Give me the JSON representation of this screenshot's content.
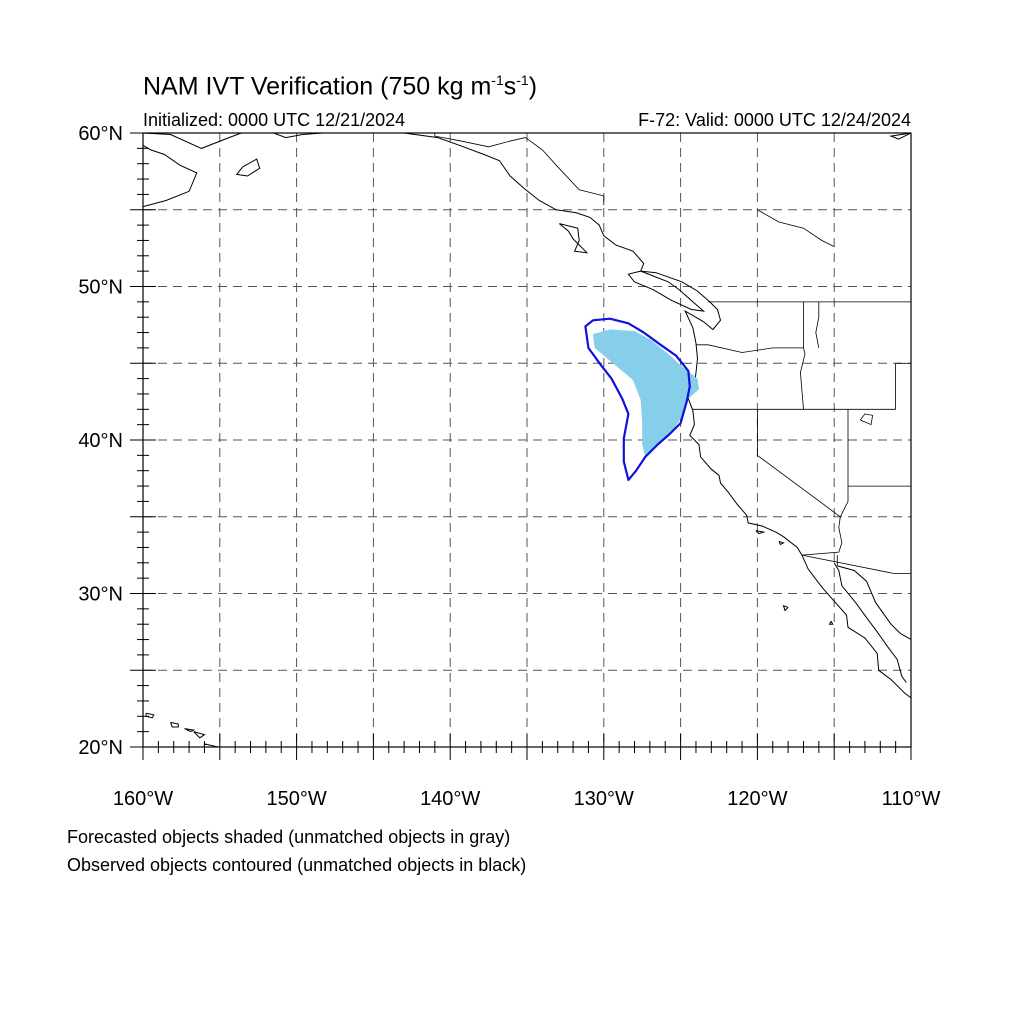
{
  "title": {
    "text": "NAM IVT Verification (750 kg m",
    "sup1": "-1",
    "mid": "s",
    "sup2": "-1",
    "end": ")"
  },
  "initialized": "Initialized: 0000 UTC 12/21/2024",
  "valid": "F-72: Valid: 0000 UTC 12/24/2024",
  "footnotes": {
    "forecast": "Forecasted objects shaded (unmatched objects in gray)",
    "observed": "Observed objects contoured (unmatched objects in black)"
  },
  "map": {
    "extent": {
      "lon_min": -160,
      "lon_max": -110,
      "lat_min": 20,
      "lat_max": 60
    },
    "lat_labels": [
      {
        "value": 20,
        "text": "20°N"
      },
      {
        "value": 30,
        "text": "30°N"
      },
      {
        "value": 40,
        "text": "40°N"
      },
      {
        "value": 50,
        "text": "50°N"
      },
      {
        "value": 60,
        "text": "60°N"
      }
    ],
    "lon_labels": [
      {
        "value": -160,
        "text": "160°W"
      },
      {
        "value": -150,
        "text": "150°W"
      },
      {
        "value": -140,
        "text": "140°W"
      },
      {
        "value": -130,
        "text": "130°W"
      },
      {
        "value": -120,
        "text": "120°W"
      },
      {
        "value": -110,
        "text": "110°W"
      }
    ],
    "grid_lons": [
      -155,
      -150,
      -145,
      -140,
      -135,
      -130,
      -125,
      -120,
      -115
    ],
    "grid_lats": [
      25,
      30,
      35,
      40,
      45,
      50,
      55
    ],
    "colors": {
      "forecast_fill": "#87ceeb",
      "observed_line": "#1010e0",
      "coast": "#000000",
      "grid": "#555555"
    },
    "forecast_object": [
      [
        -130.7,
        46.9
      ],
      [
        -129.6,
        47.2
      ],
      [
        -128.0,
        47.1
      ],
      [
        -126.9,
        46.5
      ],
      [
        -125.8,
        45.6
      ],
      [
        -124.8,
        44.7
      ],
      [
        -123.9,
        44.0
      ],
      [
        -123.8,
        43.3
      ],
      [
        -124.6,
        42.6
      ],
      [
        -125.0,
        41.4
      ],
      [
        -125.7,
        40.3
      ],
      [
        -126.6,
        39.5
      ],
      [
        -127.3,
        38.9
      ],
      [
        -127.5,
        39.7
      ],
      [
        -127.5,
        41.0
      ],
      [
        -127.6,
        42.6
      ],
      [
        -128.1,
        43.9
      ],
      [
        -129.4,
        45.0
      ],
      [
        -130.6,
        46.0
      ]
    ],
    "observed_object": [
      [
        -131.2,
        47.4
      ],
      [
        -130.7,
        47.8
      ],
      [
        -129.6,
        47.9
      ],
      [
        -128.4,
        47.6
      ],
      [
        -127.4,
        47.0
      ],
      [
        -126.3,
        46.2
      ],
      [
        -125.3,
        45.5
      ],
      [
        -124.5,
        44.5
      ],
      [
        -124.4,
        43.5
      ],
      [
        -124.6,
        42.5
      ],
      [
        -125.0,
        41.1
      ],
      [
        -125.7,
        40.4
      ],
      [
        -126.5,
        39.7
      ],
      [
        -127.3,
        38.9
      ],
      [
        -127.9,
        38.0
      ],
      [
        -128.4,
        37.4
      ],
      [
        -128.7,
        38.6
      ],
      [
        -128.7,
        40.1
      ],
      [
        -128.4,
        41.7
      ],
      [
        -128.8,
        42.7
      ],
      [
        -129.5,
        44.0
      ],
      [
        -130.2,
        44.9
      ],
      [
        -131.0,
        46.0
      ]
    ],
    "coastlines": [
      [
        [
          -160,
          55.2
        ],
        [
          -158.5,
          55.6
        ],
        [
          -157.0,
          56.2
        ],
        [
          -156.5,
          57.4
        ],
        [
          -157.6,
          57.9
        ],
        [
          -158.6,
          58.6
        ],
        [
          -159.5,
          58.9
        ],
        [
          -160,
          59.2
        ]
      ],
      [
        [
          -160,
          60
        ],
        [
          -158.2,
          59.9
        ],
        [
          -156.2,
          59.0
        ],
        [
          -154.4,
          59.7
        ],
        [
          -153.6,
          60
        ]
      ],
      [
        [
          -153.5,
          57.8
        ],
        [
          -152.6,
          58.3
        ],
        [
          -152.4,
          57.7
        ],
        [
          -153.2,
          57.2
        ],
        [
          -153.9,
          57.3
        ],
        [
          -153.5,
          57.8
        ]
      ],
      [
        [
          -151.5,
          60
        ],
        [
          -150.7,
          59.7
        ],
        [
          -149.6,
          59.9
        ],
        [
          -148.3,
          60.0
        ],
        [
          -147.0,
          60
        ],
        [
          -143,
          60
        ],
        [
          -140.8,
          59.7
        ],
        [
          -139.4,
          59.2
        ],
        [
          -137.8,
          58.6
        ],
        [
          -136.8,
          58.2
        ],
        [
          -136.1,
          57.2
        ],
        [
          -135.2,
          56.4
        ],
        [
          -134.2,
          55.6
        ],
        [
          -133.1,
          55.0
        ],
        [
          -131.8,
          54.8
        ],
        [
          -130.9,
          54.5
        ],
        [
          -130.3,
          54.0
        ],
        [
          -130.0,
          53.3
        ],
        [
          -129.2,
          52.7
        ],
        [
          -128.1,
          52.3
        ],
        [
          -127.4,
          51.5
        ],
        [
          -127.6,
          51.0
        ]
      ],
      [
        [
          -132.9,
          54.1
        ],
        [
          -131.7,
          53.8
        ],
        [
          -131.6,
          53.0
        ],
        [
          -131.9,
          52.3
        ],
        [
          -131.1,
          52.2
        ],
        [
          -132.0,
          53.1
        ],
        [
          -132.3,
          53.6
        ],
        [
          -132.9,
          54.1
        ]
      ],
      [
        [
          -127.6,
          51.0
        ],
        [
          -128.4,
          50.8
        ],
        [
          -128.0,
          50.3
        ],
        [
          -126.8,
          49.8
        ],
        [
          -125.6,
          49.1
        ],
        [
          -124.3,
          48.5
        ],
        [
          -123.5,
          48.4
        ],
        [
          -124.2,
          49.0
        ],
        [
          -125.1,
          49.8
        ],
        [
          -125.8,
          50.3
        ],
        [
          -127.6,
          51.0
        ]
      ],
      [
        [
          -127.6,
          51.0
        ],
        [
          -126.6,
          50.9
        ],
        [
          -124.9,
          50.3
        ],
        [
          -123.9,
          49.7
        ],
        [
          -123.1,
          49.0
        ],
        [
          -122.6,
          48.5
        ],
        [
          -122.4,
          47.8
        ],
        [
          -122.9,
          47.2
        ],
        [
          -123.5,
          47.7
        ],
        [
          -124.7,
          48.4
        ],
        [
          -124.2,
          47.3
        ],
        [
          -124.0,
          46.3
        ],
        [
          -123.9,
          45.3
        ],
        [
          -124.0,
          44.4
        ],
        [
          -124.1,
          43.5
        ],
        [
          -124.5,
          42.7
        ],
        [
          -124.2,
          41.9
        ],
        [
          -124.1,
          41.0
        ],
        [
          -124.4,
          40.3
        ],
        [
          -123.8,
          39.7
        ],
        [
          -123.7,
          38.9
        ],
        [
          -123.0,
          38.1
        ],
        [
          -122.5,
          37.7
        ],
        [
          -122.4,
          37.2
        ],
        [
          -121.9,
          36.6
        ],
        [
          -121.3,
          35.8
        ],
        [
          -120.7,
          35.1
        ],
        [
          -120.6,
          34.6
        ],
        [
          -119.7,
          34.4
        ],
        [
          -118.8,
          34.0
        ],
        [
          -118.3,
          33.7
        ],
        [
          -117.4,
          33.0
        ],
        [
          -117.1,
          32.5
        ],
        [
          -116.7,
          31.6
        ],
        [
          -116.1,
          30.8
        ],
        [
          -115.7,
          30.3
        ],
        [
          -115.0,
          29.5
        ],
        [
          -114.2,
          28.6
        ],
        [
          -114.1,
          27.8
        ],
        [
          -113.0,
          27.1
        ],
        [
          -112.2,
          26.1
        ],
        [
          -112.1,
          25.0
        ],
        [
          -111.3,
          24.4
        ],
        [
          -110.4,
          23.5
        ],
        [
          -110,
          23.2
        ]
      ],
      [
        [
          -115.0,
          32.0
        ],
        [
          -114.7,
          31.5
        ],
        [
          -114.5,
          30.5
        ],
        [
          -113.6,
          29.4
        ],
        [
          -112.8,
          28.3
        ],
        [
          -112.2,
          27.5
        ],
        [
          -111.5,
          26.5
        ],
        [
          -110.9,
          25.7
        ],
        [
          -110.6,
          24.6
        ],
        [
          -110.3,
          24.2
        ]
      ],
      [
        [
          -114.8,
          31.8
        ],
        [
          -113.7,
          31.5
        ],
        [
          -112.9,
          30.8
        ],
        [
          -112.3,
          29.4
        ],
        [
          -111.3,
          28.0
        ],
        [
          -110.7,
          27.4
        ],
        [
          -110,
          27.0
        ]
      ],
      [
        [
          -159.8,
          22.2
        ],
        [
          -159.3,
          22.1
        ],
        [
          -159.4,
          21.9
        ],
        [
          -159.8,
          22.0
        ],
        [
          -159.8,
          22.2
        ]
      ],
      [
        [
          -158.2,
          21.6
        ],
        [
          -157.7,
          21.5
        ],
        [
          -157.7,
          21.3
        ],
        [
          -158.1,
          21.3
        ],
        [
          -158.2,
          21.6
        ]
      ],
      [
        [
          -157.3,
          21.2
        ],
        [
          -156.7,
          21.1
        ],
        [
          -156.9,
          21.0
        ],
        [
          -157.3,
          21.2
        ]
      ],
      [
        [
          -156.7,
          21.0
        ],
        [
          -156.0,
          20.8
        ],
        [
          -156.3,
          20.6
        ],
        [
          -156.7,
          21.0
        ]
      ],
      [
        [
          -156.0,
          20.2
        ],
        [
          -155.1,
          20.0
        ],
        [
          -155.0,
          19.5
        ],
        [
          -155.6,
          19.1
        ],
        [
          -156.0,
          19.7
        ],
        [
          -156.0,
          20.2
        ]
      ],
      [
        [
          -120.1,
          34.1
        ],
        [
          -119.6,
          34.0
        ],
        [
          -119.9,
          33.9
        ],
        [
          -120.1,
          34.1
        ]
      ],
      [
        [
          -118.6,
          33.4
        ],
        [
          -118.3,
          33.3
        ],
        [
          -118.5,
          33.2
        ],
        [
          -118.6,
          33.4
        ]
      ],
      [
        [
          -118.0,
          29.1
        ],
        [
          -118.2,
          28.9
        ],
        [
          -118.3,
          29.2
        ],
        [
          -118.0,
          29.1
        ]
      ],
      [
        [
          -115.2,
          28.2
        ],
        [
          -115.3,
          28.0
        ],
        [
          -115.1,
          28.0
        ],
        [
          -115.2,
          28.2
        ]
      ],
      [
        [
          -110,
          60
        ],
        [
          -110.8,
          59.6
        ],
        [
          -111.3,
          59.8
        ],
        [
          -110,
          60
        ]
      ]
    ],
    "rivers_lakes": [
      [
        [
          -120,
          55.0
        ],
        [
          -118.6,
          54.2
        ],
        [
          -117.0,
          53.8
        ],
        [
          -115.8,
          53.0
        ],
        [
          -115.0,
          52.6
        ]
      ],
      [
        [
          -113.3,
          41.3
        ],
        [
          -112.6,
          41.0
        ],
        [
          -112.5,
          41.6
        ],
        [
          -113.0,
          41.7
        ],
        [
          -113.3,
          41.3
        ]
      ]
    ],
    "borders": [
      [
        [
          -141,
          60
        ],
        [
          -141,
          59.8
        ],
        [
          -139.4,
          59.5
        ],
        [
          -137.5,
          59.1
        ],
        [
          -136.0,
          59.5
        ],
        [
          -135.1,
          59.7
        ],
        [
          -134.0,
          58.9
        ],
        [
          -133.0,
          57.8
        ],
        [
          -131.6,
          56.3
        ],
        [
          -130.0,
          55.9
        ],
        [
          -130.0,
          55.3
        ]
      ],
      [
        [
          -123.2,
          49.0
        ],
        [
          -117,
          49.0
        ],
        [
          -110,
          49.0
        ]
      ],
      [
        [
          -124.2,
          42.0
        ],
        [
          -117,
          42.0
        ],
        [
          -111,
          42.0
        ]
      ],
      [
        [
          -117,
          49.0
        ],
        [
          -117,
          46.0
        ],
        [
          -116.9,
          45.6
        ],
        [
          -117.2,
          44.4
        ],
        [
          -117.0,
          42.0
        ]
      ],
      [
        [
          -124.0,
          46.2
        ],
        [
          -123.2,
          46.2
        ],
        [
          -121.0,
          45.7
        ],
        [
          -119.0,
          46.0
        ],
        [
          -117.0,
          46.0
        ]
      ],
      [
        [
          -120,
          42.0
        ],
        [
          -120,
          39.0
        ],
        [
          -114.6,
          35.0
        ]
      ],
      [
        [
          -114.6,
          35.0
        ],
        [
          -114.7,
          34.3
        ],
        [
          -114.5,
          33.3
        ],
        [
          -114.7,
          32.7
        ],
        [
          -117.1,
          32.5
        ]
      ],
      [
        [
          -117.1,
          32.5
        ],
        [
          -111.1,
          31.3
        ],
        [
          -110,
          31.3
        ]
      ],
      [
        [
          -114.1,
          42.0
        ],
        [
          -114.1,
          37.0
        ],
        [
          -110,
          37.0
        ]
      ],
      [
        [
          -114.6,
          35.0
        ],
        [
          -114.1,
          36.0
        ],
        [
          -114.1,
          37.0
        ]
      ],
      [
        [
          -116.0,
          49.0
        ],
        [
          -116.0,
          48.0
        ],
        [
          -116.2,
          47.0
        ],
        [
          -116.0,
          46.0
        ]
      ],
      [
        [
          -111,
          45.0
        ],
        [
          -111,
          42.0
        ]
      ],
      [
        [
          -111,
          45.0
        ],
        [
          -110,
          45.0
        ]
      ],
      [
        [
          -114.8,
          32.5
        ],
        [
          -114.8,
          31.8
        ]
      ]
    ]
  }
}
